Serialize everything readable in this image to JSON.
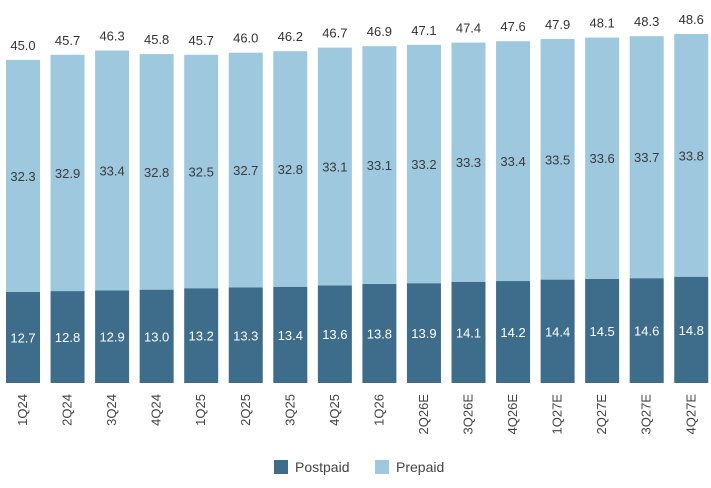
{
  "chart_data": {
    "type": "bar",
    "stacked": true,
    "categories": [
      "1Q24",
      "2Q24",
      "3Q24",
      "4Q24",
      "1Q25",
      "2Q25",
      "3Q25",
      "4Q25",
      "1Q26",
      "2Q26E",
      "3Q26E",
      "4Q26E",
      "1Q27E",
      "2Q27E",
      "3Q27E",
      "4Q27E"
    ],
    "series": [
      {
        "name": "Postpaid",
        "color": "#3e6d8c",
        "values": [
          12.7,
          12.8,
          12.9,
          13.0,
          13.2,
          13.3,
          13.4,
          13.6,
          13.8,
          13.9,
          14.1,
          14.2,
          14.4,
          14.5,
          14.6,
          14.8
        ]
      },
      {
        "name": "Prepaid",
        "color": "#9ec8de",
        "values": [
          32.3,
          32.9,
          33.4,
          32.8,
          32.5,
          32.7,
          32.8,
          33.1,
          33.1,
          33.2,
          33.3,
          33.4,
          33.5,
          33.6,
          33.7,
          33.8
        ]
      }
    ],
    "totals": [
      45.0,
      45.7,
      46.3,
      45.8,
      45.7,
      46.0,
      46.2,
      46.7,
      46.9,
      47.1,
      47.4,
      47.6,
      47.9,
      48.1,
      48.3,
      48.6
    ],
    "title": "",
    "xlabel": "",
    "ylabel": "",
    "ylim": [
      0,
      48.6
    ],
    "grid": false,
    "legend_position": "bottom-center",
    "data_labels": true,
    "tick_label_rotation": "vertical"
  }
}
